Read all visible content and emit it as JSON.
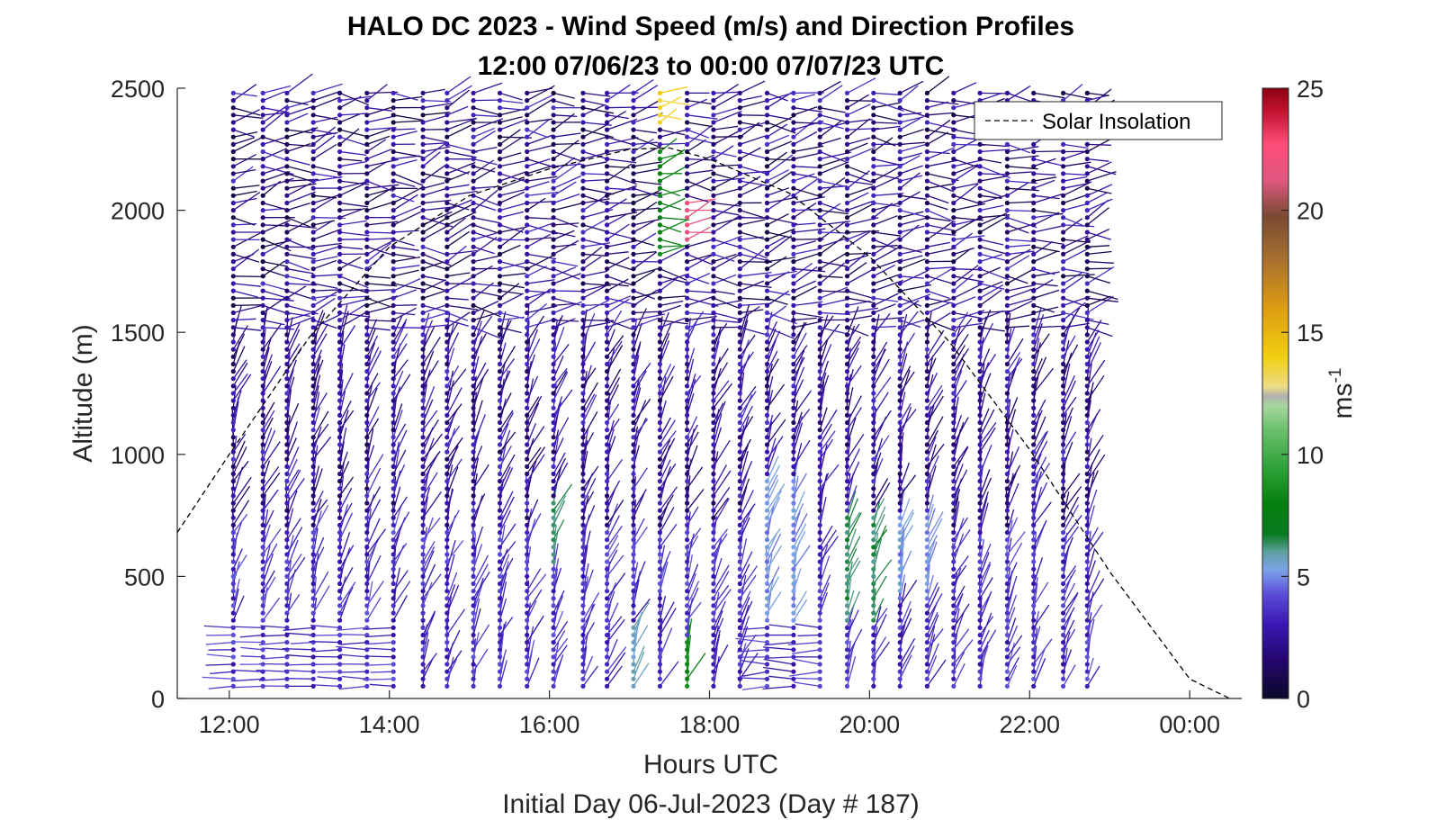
{
  "chart_data": {
    "type": "scatter",
    "title": "HALO DC 2023 - Wind Speed (m/s) and Direction Profiles",
    "subtitle": "12:00 07/06/23 to 00:00 07/07/23  UTC",
    "xlabel": "Hours UTC",
    "ylabel": "Altitude (m)",
    "footer": "Initial Day 06-Jul-2023 (Day # 187)",
    "x_ticks": [
      "12:00",
      "14:00",
      "16:00",
      "18:00",
      "20:00",
      "22:00",
      "00:00"
    ],
    "x_tick_hours": [
      12,
      14,
      16,
      18,
      20,
      22,
      24
    ],
    "xlim_hours": [
      11.35,
      24.65
    ],
    "y_ticks": [
      "0",
      "500",
      "1000",
      "1500",
      "2000",
      "2500"
    ],
    "ylim": [
      0,
      2500
    ],
    "legend": {
      "entries": [
        "Solar Insolation"
      ],
      "placement": "top-right"
    },
    "colorbar": {
      "label": "ms",
      "label_exponent": "-1",
      "ticks": [
        "0",
        "5",
        "10",
        "15",
        "20",
        "25"
      ],
      "range": [
        0,
        25
      ]
    },
    "profile_hours": [
      12.05,
      12.42,
      12.72,
      13.05,
      13.38,
      13.72,
      14.05,
      14.42,
      14.72,
      15.05,
      15.38,
      15.72,
      16.05,
      16.42,
      16.72,
      17.05,
      17.38,
      17.72,
      18.05,
      18.38,
      18.72,
      19.05,
      19.38,
      19.72,
      20.05,
      20.38,
      20.72,
      21.05,
      21.38,
      21.72,
      22.05,
      22.42,
      22.72
    ],
    "altitude_levels_m": {
      "start": 50,
      "step": 30,
      "end": 2500
    },
    "wind_speed_regions": [
      {
        "hours": [
          16.0,
          16.2
        ],
        "alt": [
          550,
          800
        ],
        "speed": 6.5
      },
      {
        "hours": [
          17.0,
          17.3
        ],
        "alt": [
          50,
          300
        ],
        "speed": 5.5
      },
      {
        "hours": [
          17.35,
          17.45
        ],
        "alt": [
          1800,
          2250
        ],
        "speed": 8
      },
      {
        "hours": [
          17.38,
          17.42
        ],
        "alt": [
          2350,
          2500
        ],
        "speed": 14
      },
      {
        "hours": [
          17.65,
          17.8
        ],
        "alt": [
          50,
          250
        ],
        "speed": 8.5
      },
      {
        "hours": [
          17.7,
          17.8
        ],
        "alt": [
          1880,
          2050
        ],
        "speed": 22
      },
      {
        "hours": [
          18.7,
          19.2
        ],
        "alt": [
          300,
          900
        ],
        "speed": 5
      },
      {
        "hours": [
          19.6,
          20.2
        ],
        "alt": [
          300,
          750
        ],
        "speed": 6.5
      },
      {
        "hours": [
          20.3,
          20.8
        ],
        "alt": [
          400,
          750
        ],
        "speed": 5
      }
    ],
    "solar_insolation_curve": {
      "style": "dashed black",
      "x_hours": [
        11.35,
        12.0,
        13.0,
        14.0,
        15.0,
        16.0,
        17.0,
        17.5,
        18.0,
        19.0,
        20.0,
        21.0,
        22.0,
        23.0,
        24.0,
        24.5
      ],
      "y_m": [
        680,
        1000,
        1480,
        1850,
        2060,
        2170,
        2250,
        2255,
        2210,
        2070,
        1810,
        1460,
        1020,
        520,
        80,
        0
      ]
    }
  }
}
